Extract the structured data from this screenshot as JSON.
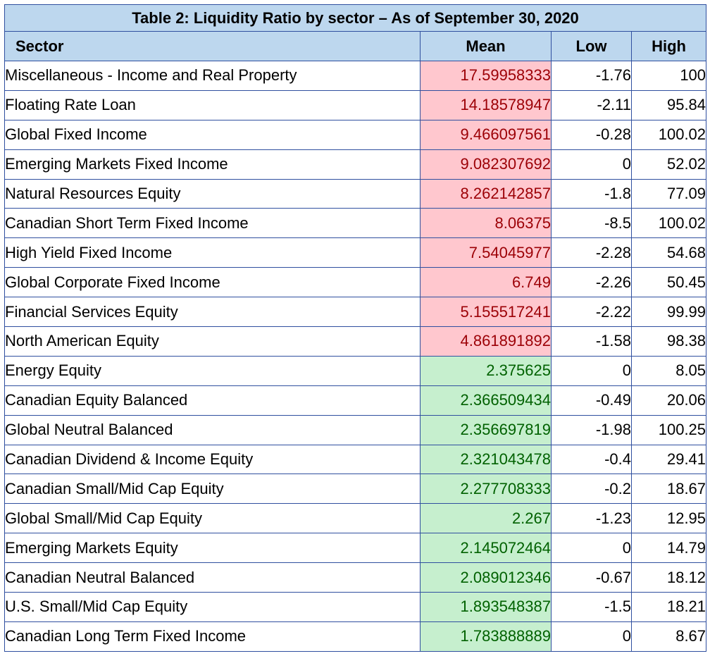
{
  "table": {
    "title": "Table 2: Liquidity Ratio by sector – As of September 30, 2020",
    "headers": {
      "sector": "Sector",
      "mean": "Mean",
      "low": "Low",
      "high": "High"
    },
    "colors": {
      "header_bg": "#bdd7ee",
      "border": "#2f4f9f",
      "high_mean_bg": "#ffc7ce",
      "high_mean_text": "#9c0006",
      "low_mean_bg": "#c6efce",
      "low_mean_text": "#006100"
    },
    "rows": [
      {
        "sector": "Miscellaneous - Income and Real Property",
        "mean": "17.59958333",
        "low": "-1.76",
        "high": "100",
        "highlight": "high"
      },
      {
        "sector": "Floating Rate Loan",
        "mean": "14.18578947",
        "low": "-2.11",
        "high": "95.84",
        "highlight": "high"
      },
      {
        "sector": "Global Fixed Income",
        "mean": "9.466097561",
        "low": "-0.28",
        "high": "100.02",
        "highlight": "high"
      },
      {
        "sector": "Emerging Markets Fixed Income",
        "mean": "9.082307692",
        "low": "0",
        "high": "52.02",
        "highlight": "high"
      },
      {
        "sector": "Natural Resources Equity",
        "mean": "8.262142857",
        "low": "-1.8",
        "high": "77.09",
        "highlight": "high"
      },
      {
        "sector": "Canadian Short Term Fixed Income",
        "mean": "8.06375",
        "low": "-8.5",
        "high": "100.02",
        "highlight": "high"
      },
      {
        "sector": "High Yield Fixed Income",
        "mean": "7.54045977",
        "low": "-2.28",
        "high": "54.68",
        "highlight": "high"
      },
      {
        "sector": "Global Corporate Fixed Income",
        "mean": "6.749",
        "low": "-2.26",
        "high": "50.45",
        "highlight": "high"
      },
      {
        "sector": "Financial Services Equity",
        "mean": "5.155517241",
        "low": "-2.22",
        "high": "99.99",
        "highlight": "high"
      },
      {
        "sector": "North American Equity",
        "mean": "4.861891892",
        "low": "-1.58",
        "high": "98.38",
        "highlight": "high"
      },
      {
        "sector": "Energy Equity",
        "mean": "2.375625",
        "low": "0",
        "high": "8.05",
        "highlight": "low"
      },
      {
        "sector": "Canadian Equity Balanced",
        "mean": "2.366509434",
        "low": "-0.49",
        "high": "20.06",
        "highlight": "low"
      },
      {
        "sector": "Global Neutral Balanced",
        "mean": "2.356697819",
        "low": "-1.98",
        "high": "100.25",
        "highlight": "low"
      },
      {
        "sector": "Canadian Dividend & Income Equity",
        "mean": "2.321043478",
        "low": "-0.4",
        "high": "29.41",
        "highlight": "low"
      },
      {
        "sector": "Canadian Small/Mid Cap Equity",
        "mean": "2.277708333",
        "low": "-0.2",
        "high": "18.67",
        "highlight": "low"
      },
      {
        "sector": "Global Small/Mid Cap Equity",
        "mean": "2.267",
        "low": "-1.23",
        "high": "12.95",
        "highlight": "low"
      },
      {
        "sector": "Emerging Markets Equity",
        "mean": "2.145072464",
        "low": "0",
        "high": "14.79",
        "highlight": "low"
      },
      {
        "sector": "Canadian Neutral Balanced",
        "mean": "2.089012346",
        "low": "-0.67",
        "high": "18.12",
        "highlight": "low"
      },
      {
        "sector": "U.S. Small/Mid Cap Equity",
        "mean": "1.893548387",
        "low": "-1.5",
        "high": "18.21",
        "highlight": "low"
      },
      {
        "sector": "Canadian Long Term Fixed Income",
        "mean": "1.783888889",
        "low": "0",
        "high": "8.67",
        "highlight": "low"
      }
    ]
  }
}
